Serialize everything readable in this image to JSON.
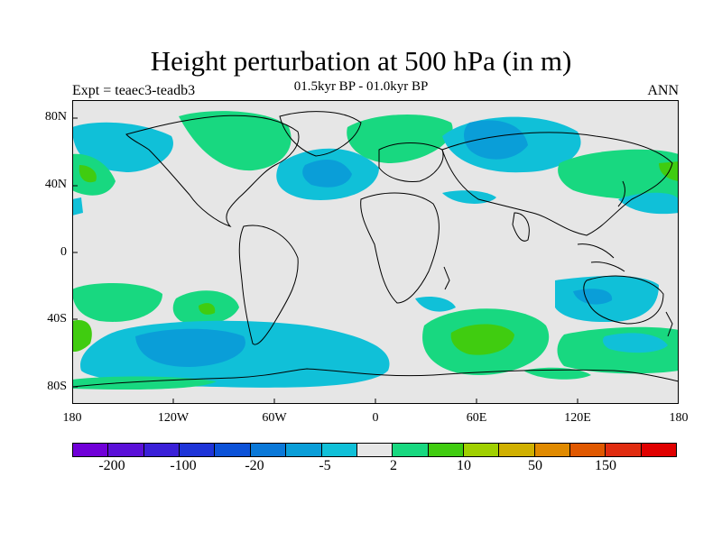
{
  "title": "Height perturbation at 500 hPa (in m)",
  "subtitle": "01.5kyr BP - 01.0kyr BP",
  "left_label": "Expt = teaec3-teadb3",
  "right_label": "ANN",
  "y_axis": {
    "labels": [
      "80N",
      "40N",
      "0",
      "40S",
      "80S"
    ],
    "values": [
      80,
      40,
      0,
      -40,
      -80
    ]
  },
  "x_axis": {
    "labels": [
      "180",
      "120W",
      "60W",
      "0",
      "60E",
      "120E",
      "180"
    ],
    "values": [
      -180,
      -120,
      -60,
      0,
      60,
      120,
      180
    ]
  },
  "colorbar": {
    "colors": [
      "#7000d8",
      "#5a10d8",
      "#3a20d8",
      "#1e34d8",
      "#0c52d8",
      "#0a78d8",
      "#0a9ed8",
      "#10c0d8",
      "#e6e6e6",
      "#18d880",
      "#40cc10",
      "#a0d000",
      "#d0b000",
      "#e08a00",
      "#e05800",
      "#e02c10",
      "#e00000"
    ],
    "labels": [
      "-200",
      "-100",
      "-20",
      "-5",
      "2",
      "10",
      "50",
      "150"
    ]
  },
  "map": {
    "background": "#e6e6e6",
    "projection": "cylindrical equidistant",
    "lon_range": [
      -180,
      180
    ],
    "lat_range": [
      -90,
      90
    ]
  }
}
